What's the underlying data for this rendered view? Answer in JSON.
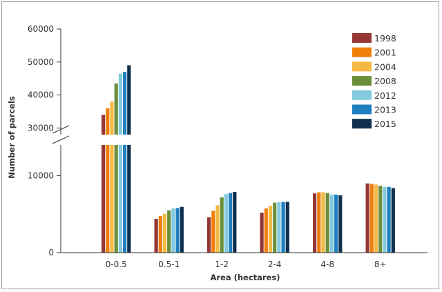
{
  "chart_data": {
    "type": "bar",
    "xlabel": "Area (hectares)",
    "ylabel": "Number of parcels",
    "categories": [
      "0-0.5",
      "0.5-1",
      "1-2",
      "2-4",
      "4-8",
      "8+"
    ],
    "y_axis": {
      "broken": true,
      "lower_range": [
        0,
        14000
      ],
      "lower_ticks": [
        "0",
        "10000"
      ],
      "upper_range": [
        28000,
        60000
      ],
      "upper_ticks": [
        "30000",
        "40000",
        "50000",
        "60000"
      ]
    },
    "series": [
      {
        "name": "1998",
        "color": "#953735",
        "values": [
          34000,
          4400,
          4600,
          5200,
          7700,
          9000
        ]
      },
      {
        "name": "2001",
        "color": "#f07f09",
        "values": [
          36000,
          4750,
          5450,
          5750,
          7850,
          8950
        ]
      },
      {
        "name": "2004",
        "color": "#f4b942",
        "values": [
          38000,
          5050,
          6150,
          6100,
          7850,
          8850
        ]
      },
      {
        "name": "2008",
        "color": "#6a8e3a",
        "values": [
          43500,
          5500,
          7200,
          6500,
          7750,
          8700
        ]
      },
      {
        "name": "2012",
        "color": "#84cade",
        "values": [
          46500,
          5750,
          7600,
          6550,
          7550,
          8550
        ]
      },
      {
        "name": "2013",
        "color": "#1f7fc0",
        "values": [
          47000,
          5800,
          7750,
          6600,
          7550,
          8550
        ]
      },
      {
        "name": "2015",
        "color": "#0e2f4e",
        "values": [
          49000,
          5950,
          7900,
          6600,
          7450,
          8400
        ]
      }
    ],
    "legend_position": "top-right",
    "grid": false
  }
}
